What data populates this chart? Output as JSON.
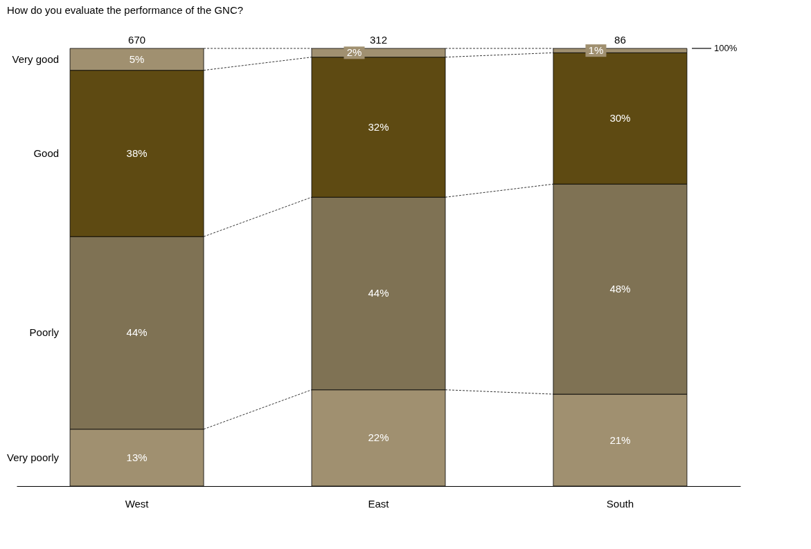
{
  "chart_data": {
    "type": "bar",
    "stacked": true,
    "title": "How do you evaluate the performance of the GNC?",
    "categories": [
      "West",
      "East",
      "South"
    ],
    "series": [
      {
        "name": "Very poorly",
        "color": "#a09070",
        "values": [
          13,
          22,
          21
        ],
        "value_labels": [
          "13%",
          "22%",
          "21%"
        ]
      },
      {
        "name": "Poorly",
        "color": "#7f7254",
        "values": [
          44,
          44,
          48
        ],
        "value_labels": [
          "44%",
          "44%",
          "48%"
        ]
      },
      {
        "name": "Good",
        "color": "#5e4a12",
        "values": [
          38,
          32,
          30
        ],
        "value_labels": [
          "38%",
          "32%",
          "30%"
        ]
      },
      {
        "name": "Very good",
        "color": "#a09070",
        "values": [
          5,
          2,
          1
        ],
        "value_labels": [
          "5%",
          "2%",
          "1%"
        ]
      }
    ],
    "annotations": [
      {
        "text": "670",
        "x": "West",
        "y": 100
      },
      {
        "text": "312",
        "x": "East",
        "y": 100
      },
      {
        "text": "86",
        "x": "South",
        "y": 100
      },
      "100%"
    ],
    "legend": false
  }
}
